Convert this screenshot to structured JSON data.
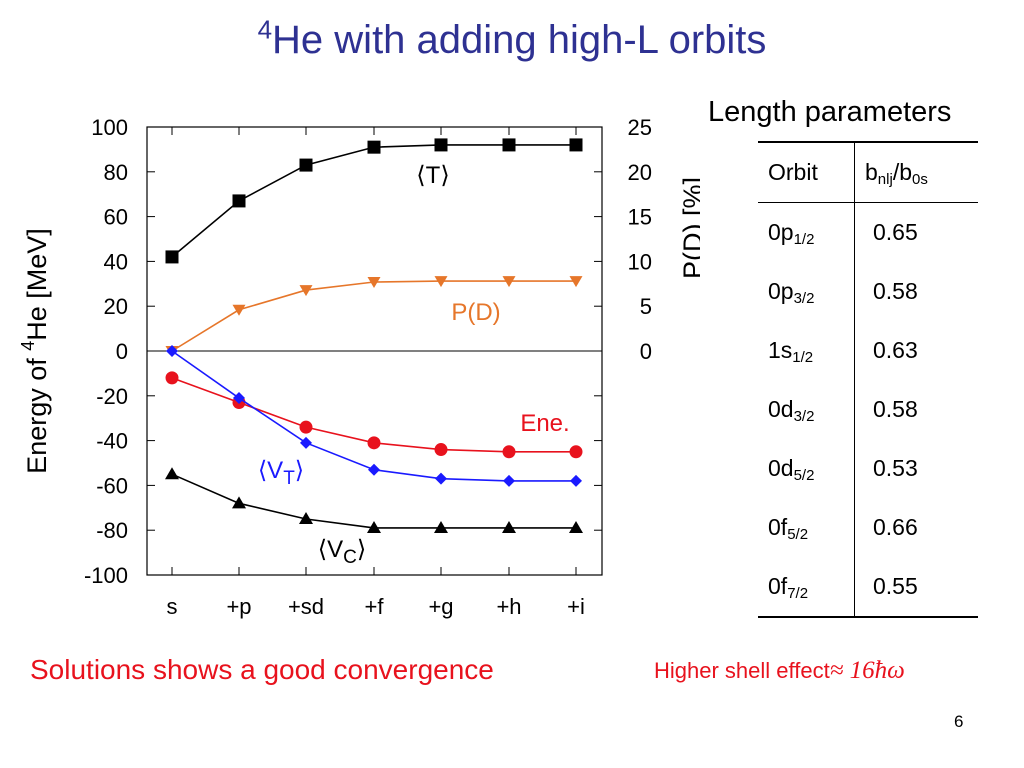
{
  "slide": {
    "title_sup": "4",
    "title_main": "He with adding high-L orbits",
    "page_number": "6"
  },
  "conclusion": "Solutions shows a good convergence",
  "shell_note": {
    "text": "Higher shell effect",
    "formula": "≈ 16ħω"
  },
  "colors": {
    "title": "#2e3192",
    "accent_red": "#e8121d",
    "pd_orange": "#e6762a",
    "vt_blue": "#1a1aff",
    "black": "#000000"
  },
  "table": {
    "title": "Length parameters",
    "header_orbit": "Orbit",
    "header_b_main": "b",
    "header_b_sub": "nlj",
    "header_b_mid": "/b",
    "header_b_sub2": "0s",
    "rows": [
      {
        "orbit": "0p",
        "sub": "1/2",
        "value": "0.65"
      },
      {
        "orbit": "0p",
        "sub": "3/2",
        "value": "0.58"
      },
      {
        "orbit": "1s",
        "sub": "1/2",
        "value": "0.63"
      },
      {
        "orbit": "0d",
        "sub": "3/2",
        "value": "0.58"
      },
      {
        "orbit": "0d",
        "sub": "5/2",
        "value": "0.53"
      },
      {
        "orbit": "0f",
        "sub": "5/2",
        "value": "0.66"
      },
      {
        "orbit": "0f",
        "sub": "7/2",
        "value": "0.55"
      }
    ]
  },
  "chart_data": {
    "type": "line",
    "categories": [
      "s",
      "+p",
      "+sd",
      "+f",
      "+g",
      "+h",
      "+i"
    ],
    "ylabel_pre": "Energy of ",
    "ylabel_sup": "4",
    "ylabel_post": "He [MeV]",
    "y2label": "P(D) [%]",
    "ylim": [
      -100,
      100
    ],
    "yticks": [
      100,
      80,
      60,
      40,
      20,
      0,
      -20,
      -40,
      -60,
      -80,
      -100
    ],
    "y2lim": [
      -25,
      25
    ],
    "y2ticks": [
      25,
      20,
      15,
      10,
      5,
      0
    ],
    "zero_line": true,
    "series": [
      {
        "name": "⟨T⟩",
        "axis": "left",
        "marker": "square",
        "color": "#000000",
        "values": [
          42,
          67,
          83,
          91,
          92,
          92,
          92
        ]
      },
      {
        "name": "P(D)",
        "axis": "right",
        "marker": "triangle-down",
        "color": "#e6762a",
        "values": [
          0.0,
          4.6,
          6.8,
          7.7,
          7.8,
          7.8,
          7.8
        ]
      },
      {
        "name": "Ene.",
        "axis": "left",
        "marker": "circle",
        "color": "#e8121d",
        "values": [
          -12,
          -23,
          -34,
          -41,
          -44,
          -45,
          -45
        ]
      },
      {
        "name": "⟨V",
        "name_sub": "T",
        "name_post": "⟩",
        "axis": "left",
        "marker": "diamond",
        "color": "#1a1aff",
        "values": [
          0,
          -21,
          -41,
          -53,
          -57,
          -58,
          -58
        ]
      },
      {
        "name": "⟨V",
        "name_sub": "C",
        "name_post": "⟩",
        "axis": "left",
        "marker": "triangle-up",
        "color": "#000000",
        "values": [
          -55,
          -68,
          -75,
          -79,
          -79,
          -79,
          -79
        ]
      }
    ]
  }
}
